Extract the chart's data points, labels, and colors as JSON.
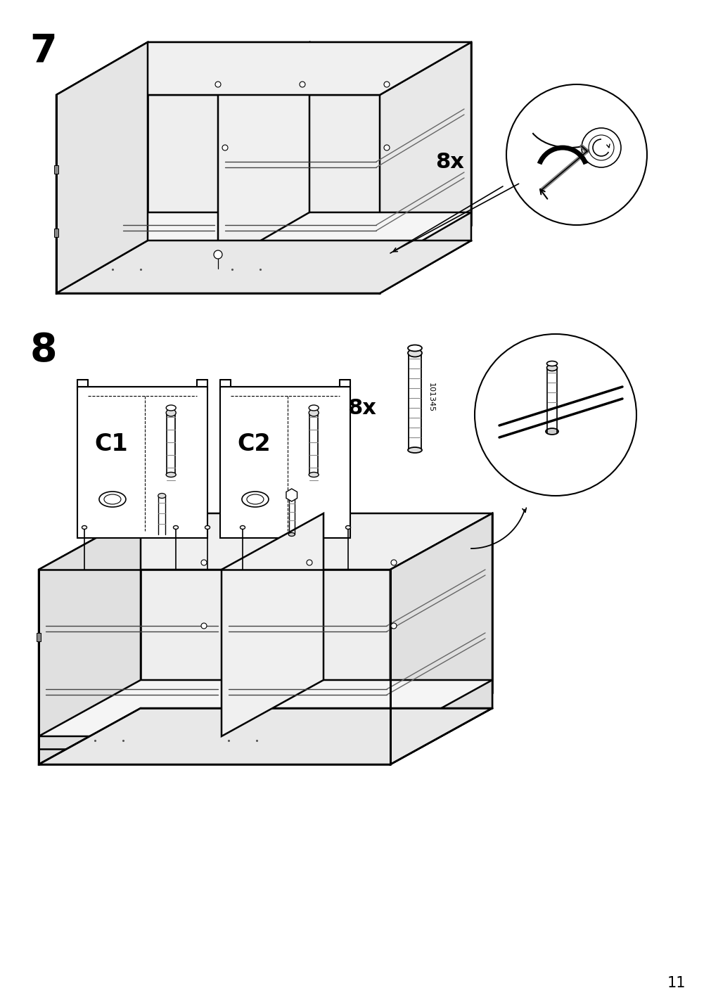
{
  "page_number": "11",
  "step7_number": "7",
  "step8_number": "8",
  "bg_color": "#ffffff",
  "line_color": "#000000",
  "step7_8x_text": "8x",
  "step8_8x_text": "8x",
  "step8_part_number": "101345",
  "c1_label": "C1",
  "c2_label": "C2",
  "fig_width": 10.12,
  "fig_height": 14.32,
  "dpi": 100
}
